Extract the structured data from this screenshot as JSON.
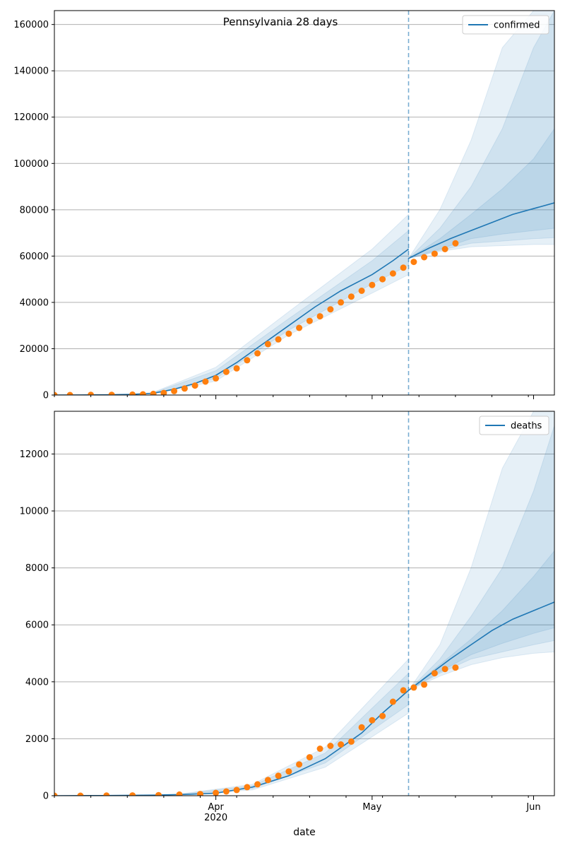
{
  "chart_data": [
    {
      "type": "line",
      "title": "Pennsylvania 28 days",
      "xlabel": "",
      "ylabel": "",
      "ylim": [
        0,
        166000
      ],
      "yticks": [
        0,
        20000,
        40000,
        60000,
        80000,
        100000,
        120000,
        140000,
        160000
      ],
      "yticklabels": [
        "0",
        "20000",
        "40000",
        "60000",
        "80000",
        "100000",
        "120000",
        "140000",
        "160000"
      ],
      "x_start": "2020-03-01",
      "x_end": "2020-06-05",
      "vline": "2020-05-08",
      "grid": "y",
      "legend": {
        "placement": "upper right",
        "entries": [
          "confirmed"
        ]
      },
      "colors": {
        "line": "#1f77b4",
        "observed": "#ff7f0e",
        "band": "#1f77b4"
      },
      "series": [
        {
          "name": "confirmed",
          "kind": "model",
          "x": [
            "2020-03-01",
            "2020-03-06",
            "2020-03-11",
            "2020-03-16",
            "2020-03-20",
            "2020-03-24",
            "2020-03-28",
            "2020-04-01",
            "2020-04-05",
            "2020-04-10",
            "2020-04-15",
            "2020-04-20",
            "2020-04-25",
            "2020-05-01",
            "2020-05-05",
            "2020-05-08"
          ],
          "y": [
            0,
            30,
            80,
            300,
            800,
            2500,
            5000,
            8500,
            14000,
            22000,
            30000,
            38000,
            45000,
            52000,
            58000,
            63000
          ]
        },
        {
          "name": "confirmed forecast",
          "kind": "model",
          "x": [
            "2020-05-08",
            "2020-05-12",
            "2020-05-16",
            "2020-05-20",
            "2020-05-24",
            "2020-05-28",
            "2020-06-01",
            "2020-06-05"
          ],
          "y": [
            59000,
            63500,
            67500,
            71000,
            74500,
            78000,
            80500,
            83000
          ]
        },
        {
          "name": "confirmed observed",
          "kind": "observed",
          "x": [
            "2020-03-01",
            "2020-03-04",
            "2020-03-08",
            "2020-03-12",
            "2020-03-16",
            "2020-03-18",
            "2020-03-20",
            "2020-03-22",
            "2020-03-24",
            "2020-03-26",
            "2020-03-28",
            "2020-03-30",
            "2020-04-01",
            "2020-04-03",
            "2020-04-05",
            "2020-04-07",
            "2020-04-09",
            "2020-04-11",
            "2020-04-13",
            "2020-04-15",
            "2020-04-17",
            "2020-04-19",
            "2020-04-21",
            "2020-04-23",
            "2020-04-25",
            "2020-04-27",
            "2020-04-29",
            "2020-05-01",
            "2020-05-03",
            "2020-05-05",
            "2020-05-07",
            "2020-05-09",
            "2020-05-11",
            "2020-05-13",
            "2020-05-15",
            "2020-05-17"
          ],
          "y": [
            0,
            10,
            50,
            80,
            170,
            300,
            500,
            900,
            1700,
            2800,
            4100,
            5800,
            7200,
            10000,
            11500,
            15000,
            18000,
            22000,
            24000,
            26500,
            29000,
            32000,
            34000,
            37000,
            40000,
            42500,
            45000,
            47500,
            50000,
            52500,
            55000,
            57500,
            59500,
            61000,
            63000,
            65500
          ]
        }
      ],
      "bands": [
        {
          "x": [
            "2020-03-20",
            "2020-04-01",
            "2020-04-15",
            "2020-05-01",
            "2020-05-08"
          ],
          "lower": [
            500,
            6000,
            26000,
            44000,
            52000
          ],
          "upper": [
            1200,
            12000,
            36000,
            63000,
            78000
          ]
        },
        {
          "x": [
            "2020-03-20",
            "2020-04-01",
            "2020-04-15",
            "2020-05-01",
            "2020-05-08"
          ],
          "lower": [
            650,
            7200,
            28000,
            48000,
            56000
          ],
          "upper": [
            1000,
            10500,
            33000,
            58000,
            71000
          ]
        },
        {
          "x": [
            "2020-05-08",
            "2020-05-14",
            "2020-05-20",
            "2020-05-26",
            "2020-06-01",
            "2020-06-05"
          ],
          "lower": [
            59000,
            62000,
            64000,
            64500,
            65000,
            65000
          ],
          "upper": [
            59000,
            80000,
            110000,
            150000,
            166000,
            166000
          ]
        },
        {
          "x": [
            "2020-05-08",
            "2020-05-14",
            "2020-05-20",
            "2020-05-26",
            "2020-06-01",
            "2020-06-05"
          ],
          "lower": [
            59000,
            62500,
            65500,
            66500,
            67500,
            68000
          ],
          "upper": [
            59000,
            72000,
            90000,
            115000,
            150000,
            166000
          ]
        },
        {
          "x": [
            "2020-05-08",
            "2020-05-14",
            "2020-05-20",
            "2020-05-26",
            "2020-06-01",
            "2020-06-05"
          ],
          "lower": [
            59000,
            63000,
            67500,
            69500,
            71000,
            72000
          ],
          "upper": [
            59000,
            67500,
            78000,
            89000,
            102000,
            115000
          ]
        }
      ]
    },
    {
      "type": "line",
      "title": "",
      "xlabel": "date",
      "ylabel": "",
      "ylim": [
        0,
        13500
      ],
      "yticks": [
        0,
        2000,
        4000,
        6000,
        8000,
        10000,
        12000
      ],
      "yticklabels": [
        "0",
        "2000",
        "4000",
        "6000",
        "8000",
        "10000",
        "12000"
      ],
      "x_start": "2020-03-01",
      "x_end": "2020-06-05",
      "vline": "2020-05-08",
      "grid": "y",
      "legend": {
        "placement": "upper right",
        "entries": [
          "deaths"
        ]
      },
      "xticks": [
        "2020-04-01",
        "2020-05-01",
        "2020-06-01"
      ],
      "xticklabels": [
        "Apr\n2020",
        "May",
        "Jun"
      ],
      "colors": {
        "line": "#1f77b4",
        "observed": "#ff7f0e",
        "band": "#1f77b4"
      },
      "series": [
        {
          "name": "deaths",
          "kind": "model",
          "x": [
            "2020-03-01",
            "2020-03-10",
            "2020-03-20",
            "2020-03-27",
            "2020-04-01",
            "2020-04-08",
            "2020-04-15",
            "2020-04-22",
            "2020-04-29",
            "2020-05-03",
            "2020-05-08"
          ],
          "y": [
            0,
            5,
            20,
            50,
            90,
            300,
            700,
            1300,
            2200,
            2900,
            3700
          ]
        },
        {
          "name": "deaths forecast",
          "kind": "model",
          "x": [
            "2020-05-08",
            "2020-05-12",
            "2020-05-16",
            "2020-05-20",
            "2020-05-24",
            "2020-05-28",
            "2020-06-01",
            "2020-06-05"
          ],
          "y": [
            3700,
            4250,
            4800,
            5300,
            5800,
            6200,
            6500,
            6800
          ]
        },
        {
          "name": "deaths observed",
          "kind": "observed",
          "x": [
            "2020-03-01",
            "2020-03-06",
            "2020-03-11",
            "2020-03-16",
            "2020-03-21",
            "2020-03-25",
            "2020-03-29",
            "2020-04-01",
            "2020-04-03",
            "2020-04-05",
            "2020-04-07",
            "2020-04-09",
            "2020-04-11",
            "2020-04-13",
            "2020-04-15",
            "2020-04-17",
            "2020-04-19",
            "2020-04-21",
            "2020-04-23",
            "2020-04-25",
            "2020-04-27",
            "2020-04-29",
            "2020-05-01",
            "2020-05-03",
            "2020-05-05",
            "2020-05-07",
            "2020-05-09",
            "2020-05-11",
            "2020-05-13",
            "2020-05-15",
            "2020-05-17"
          ],
          "y": [
            0,
            0,
            5,
            10,
            20,
            40,
            60,
            100,
            150,
            200,
            300,
            400,
            550,
            700,
            850,
            1100,
            1350,
            1650,
            1750,
            1800,
            1900,
            2400,
            2650,
            2800,
            3300,
            3700,
            3800,
            3900,
            4300,
            4450,
            4500
          ]
        }
      ],
      "bands": [
        {
          "x": [
            "2020-03-25",
            "2020-04-08",
            "2020-04-22",
            "2020-05-08"
          ],
          "lower": [
            20,
            200,
            1000,
            2900
          ],
          "upper": [
            60,
            400,
            1700,
            4800
          ]
        },
        {
          "x": [
            "2020-03-25",
            "2020-04-08",
            "2020-04-22",
            "2020-05-08"
          ],
          "lower": [
            30,
            250,
            1150,
            3200
          ],
          "upper": [
            50,
            350,
            1500,
            4300
          ]
        },
        {
          "x": [
            "2020-05-08",
            "2020-05-14",
            "2020-05-20",
            "2020-05-26",
            "2020-06-01",
            "2020-06-05"
          ],
          "lower": [
            3700,
            4200,
            4600,
            4850,
            5000,
            5050
          ],
          "upper": [
            3700,
            5300,
            8000,
            11500,
            13500,
            13500
          ]
        },
        {
          "x": [
            "2020-05-08",
            "2020-05-14",
            "2020-05-20",
            "2020-05-26",
            "2020-06-01",
            "2020-06-05"
          ],
          "lower": [
            3700,
            4300,
            4800,
            5050,
            5300,
            5450
          ],
          "upper": [
            3700,
            4800,
            6300,
            8000,
            10700,
            13000
          ]
        },
        {
          "x": [
            "2020-05-08",
            "2020-05-14",
            "2020-05-20",
            "2020-05-26",
            "2020-06-01",
            "2020-06-05"
          ],
          "lower": [
            3700,
            4350,
            4950,
            5350,
            5700,
            5900
          ],
          "upper": [
            3700,
            4600,
            5500,
            6500,
            7700,
            8600
          ]
        }
      ]
    }
  ]
}
